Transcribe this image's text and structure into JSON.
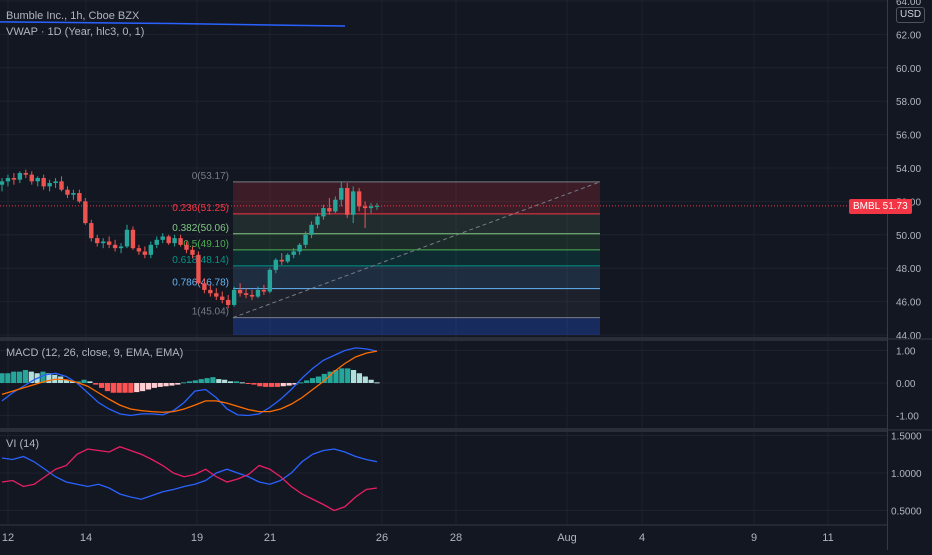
{
  "title": "Bumble Inc., 1h, Cboe BZX",
  "vwap_label": "VWAP · 1D (Year, hlc3, 0, 1)",
  "macd_label": "MACD (12, 26, close, 9, EMA, EMA)",
  "vi_label": "VI (14)",
  "currency": "USD",
  "last_price": {
    "symbol": "BMBL",
    "value": "51.73"
  },
  "colors": {
    "bg": "#131722",
    "up": "#26a69a",
    "down": "#ef5350",
    "vwap": "#2962ff",
    "macd": "#2962ff",
    "signal": "#ff6d00",
    "vi_plus": "#2962ff",
    "vi_minus": "#e91e63"
  },
  "price_axis": [
    "64.00",
    "62.00",
    "60.00",
    "58.00",
    "56.00",
    "54.00",
    "52.00",
    "50.00",
    "48.00",
    "46.00",
    "44.00"
  ],
  "macd_axis": [
    "1.00",
    "0.00",
    "-1.00"
  ],
  "vi_axis": [
    "1.5000",
    "1.0000",
    "0.5000"
  ],
  "time_axis": [
    "12",
    "14",
    "19",
    "21",
    "26",
    "28",
    "Aug",
    "4",
    "9",
    "11"
  ],
  "fib_levels": [
    {
      "ratio": "0",
      "price": "53.17",
      "label": "0(53.17)"
    },
    {
      "ratio": "0.236",
      "price": "51.25",
      "label": "0.236(51.25)"
    },
    {
      "ratio": "0.382",
      "price": "50.06",
      "label": "0.382(50.06)"
    },
    {
      "ratio": "0.5",
      "price": "49.10",
      "label": "0.5(49.10)"
    },
    {
      "ratio": "0.618",
      "price": "48.14",
      "label": "0.618(48.14)"
    },
    {
      "ratio": "0.786",
      "price": "46.78",
      "label": "0.786(46.78)"
    },
    {
      "ratio": "1",
      "price": "45.04",
      "label": "1(45.04)"
    }
  ],
  "chart_data": {
    "type": "candlestick",
    "title": "Bumble Inc., 1h, Cboe BZX",
    "ylim": [
      44,
      64
    ],
    "candles": [
      [
        53.0,
        53.4,
        52.6,
        53.2
      ],
      [
        53.2,
        53.6,
        52.9,
        53.4
      ],
      [
        53.4,
        53.7,
        53.0,
        53.3
      ],
      [
        53.3,
        53.8,
        53.1,
        53.7
      ],
      [
        53.7,
        53.9,
        53.4,
        53.6
      ],
      [
        53.6,
        53.8,
        53.0,
        53.2
      ],
      [
        53.2,
        53.5,
        52.9,
        53.4
      ],
      [
        53.4,
        53.6,
        52.7,
        52.9
      ],
      [
        52.9,
        53.3,
        52.6,
        53.1
      ],
      [
        53.1,
        53.4,
        52.8,
        53.2
      ],
      [
        53.2,
        53.5,
        52.6,
        52.7
      ],
      [
        52.7,
        52.9,
        52.2,
        52.4
      ],
      [
        52.4,
        52.7,
        52.1,
        52.5
      ],
      [
        52.5,
        52.7,
        51.9,
        52.0
      ],
      [
        52.0,
        52.2,
        50.6,
        50.7
      ],
      [
        50.7,
        50.9,
        49.6,
        49.8
      ],
      [
        49.8,
        50.0,
        49.3,
        49.5
      ],
      [
        49.5,
        49.8,
        49.2,
        49.6
      ],
      [
        49.6,
        49.9,
        49.2,
        49.4
      ],
      [
        49.4,
        49.7,
        49.0,
        49.2
      ],
      [
        49.2,
        49.5,
        48.9,
        49.3
      ],
      [
        49.3,
        50.6,
        49.2,
        50.3
      ],
      [
        50.3,
        50.5,
        49.1,
        49.2
      ],
      [
        49.2,
        49.4,
        48.8,
        49.0
      ],
      [
        49.0,
        49.3,
        48.6,
        48.8
      ],
      [
        48.8,
        49.6,
        48.6,
        49.4
      ],
      [
        49.4,
        49.9,
        49.2,
        49.7
      ],
      [
        49.7,
        50.1,
        49.5,
        49.9
      ],
      [
        49.9,
        50.0,
        49.4,
        49.5
      ],
      [
        49.5,
        50.0,
        49.3,
        49.8
      ],
      [
        49.8,
        50.0,
        49.3,
        49.4
      ],
      [
        49.4,
        49.6,
        48.9,
        49.1
      ],
      [
        49.1,
        49.3,
        48.6,
        48.8
      ],
      [
        48.8,
        49.0,
        47.0,
        47.1
      ],
      [
        47.1,
        47.4,
        46.5,
        46.7
      ],
      [
        46.7,
        47.0,
        46.3,
        46.5
      ],
      [
        46.5,
        46.8,
        46.1,
        46.3
      ],
      [
        46.3,
        46.6,
        45.9,
        46.1
      ],
      [
        46.1,
        46.4,
        45.6,
        45.8
      ],
      [
        45.8,
        46.9,
        45.7,
        46.7
      ],
      [
        46.7,
        47.1,
        46.3,
        46.5
      ],
      [
        46.5,
        46.8,
        46.2,
        46.4
      ],
      [
        46.4,
        46.7,
        46.1,
        46.3
      ],
      [
        46.3,
        46.9,
        46.2,
        46.7
      ],
      [
        46.7,
        47.0,
        46.4,
        46.6
      ],
      [
        46.6,
        48.0,
        46.5,
        47.9
      ],
      [
        47.9,
        48.6,
        47.7,
        48.5
      ],
      [
        48.5,
        48.9,
        48.2,
        48.4
      ],
      [
        48.4,
        48.9,
        48.3,
        48.8
      ],
      [
        48.8,
        49.2,
        48.6,
        49.0
      ],
      [
        49.0,
        49.5,
        48.8,
        49.4
      ],
      [
        49.4,
        50.2,
        49.2,
        50.0
      ],
      [
        50.0,
        50.8,
        49.8,
        50.6
      ],
      [
        50.6,
        51.3,
        50.4,
        51.1
      ],
      [
        51.1,
        51.8,
        50.9,
        51.6
      ],
      [
        51.6,
        52.2,
        51.2,
        51.4
      ],
      [
        51.4,
        52.3,
        51.3,
        52.1
      ],
      [
        52.1,
        53.2,
        51.7,
        52.8
      ],
      [
        52.8,
        53.1,
        51.0,
        51.2
      ],
      [
        51.2,
        52.9,
        50.7,
        52.6
      ],
      [
        52.6,
        52.8,
        51.4,
        51.7
      ],
      [
        51.7,
        52.0,
        50.4,
        51.6
      ],
      [
        51.6,
        51.9,
        51.3,
        51.7
      ],
      [
        51.7,
        51.9,
        51.5,
        51.73
      ]
    ],
    "vwap": [
      62.75,
      62.72,
      62.68,
      62.65,
      62.6,
      62.55,
      62.5
    ],
    "macd": [
      -0.55,
      -0.3,
      -0.1,
      0.1,
      0.25,
      0.3,
      0.2,
      0.0,
      -0.3,
      -0.6,
      -0.8,
      -0.95,
      -1.0,
      -0.95,
      -0.95,
      -0.98,
      -0.85,
      -0.6,
      -0.25,
      -0.2,
      -0.45,
      -0.8,
      -0.98,
      -1.0,
      -0.95,
      -0.75,
      -0.5,
      -0.2,
      0.15,
      0.45,
      0.7,
      0.85,
      1.0,
      1.08,
      1.05,
      0.98
    ],
    "signal": [
      -0.35,
      -0.25,
      -0.15,
      -0.05,
      0.05,
      0.12,
      0.1,
      0.02,
      -0.1,
      -0.3,
      -0.5,
      -0.68,
      -0.8,
      -0.85,
      -0.88,
      -0.9,
      -0.88,
      -0.8,
      -0.68,
      -0.55,
      -0.55,
      -0.62,
      -0.72,
      -0.82,
      -0.88,
      -0.88,
      -0.8,
      -0.65,
      -0.45,
      -0.2,
      0.05,
      0.35,
      0.6,
      0.8,
      0.92,
      0.98
    ],
    "histogram": [
      0.3,
      0.3,
      0.35,
      0.35,
      0.4,
      0.35,
      0.3,
      0.35,
      0.3,
      0.25,
      0.2,
      0.1,
      0.05,
      0.05,
      0.1,
      0.05,
      -0.05,
      -0.15,
      -0.25,
      -0.3,
      -0.3,
      -0.3,
      -0.3,
      -0.28,
      -0.25,
      -0.2,
      -0.15,
      -0.12,
      -0.1,
      -0.08,
      -0.05,
      0.02,
      0.05,
      0.08,
      0.12,
      0.15,
      0.18,
      0.12,
      0.1,
      0.05,
      0.05,
      0.02,
      -0.02,
      -0.05,
      -0.1,
      -0.12,
      -0.12,
      -0.12,
      -0.1,
      -0.08,
      -0.05,
      0.02,
      0.08,
      0.15,
      0.2,
      0.28,
      0.35,
      0.4,
      0.45,
      0.45,
      0.4,
      0.3,
      0.2,
      0.1,
      0.02
    ],
    "vi_plus": [
      1.2,
      1.18,
      1.22,
      1.15,
      1.05,
      0.95,
      0.88,
      0.85,
      0.82,
      0.85,
      0.8,
      0.72,
      0.68,
      0.65,
      0.7,
      0.75,
      0.78,
      0.82,
      0.85,
      0.9,
      1.0,
      1.05,
      1.0,
      0.95,
      0.88,
      0.85,
      0.9,
      1.0,
      1.15,
      1.25,
      1.3,
      1.32,
      1.28,
      1.22,
      1.18,
      1.15
    ],
    "vi_minus": [
      0.88,
      0.9,
      0.82,
      0.85,
      0.95,
      1.05,
      1.1,
      1.25,
      1.32,
      1.3,
      1.28,
      1.35,
      1.3,
      1.25,
      1.18,
      1.1,
      1.0,
      0.95,
      0.98,
      1.05,
      0.95,
      0.88,
      0.92,
      0.98,
      1.1,
      1.05,
      0.95,
      0.82,
      0.72,
      0.65,
      0.58,
      0.5,
      0.55,
      0.68,
      0.78,
      0.8
    ]
  }
}
